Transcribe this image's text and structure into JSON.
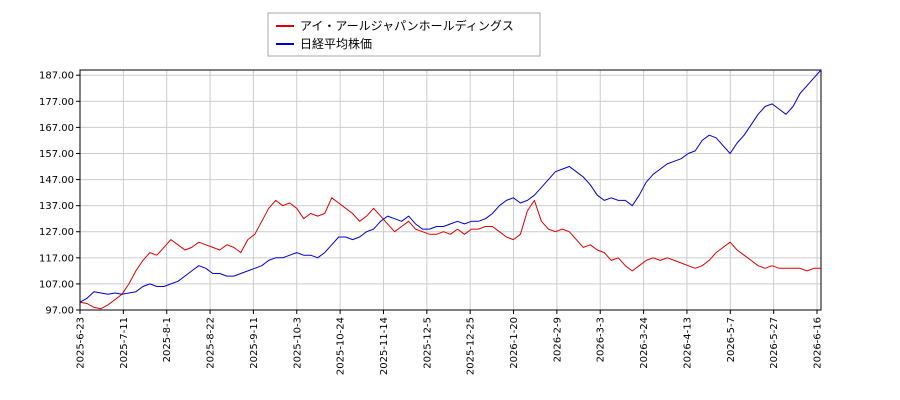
{
  "chart_data": {
    "type": "line",
    "title": "",
    "xlabel": "",
    "ylabel": "",
    "ylim": [
      97,
      189
    ],
    "yticks": [
      "97.00",
      "107.00",
      "117.00",
      "127.00",
      "137.00",
      "147.00",
      "157.00",
      "167.00",
      "177.00",
      "187.00"
    ],
    "xticks": [
      "2025-6-23",
      "2025-7-11",
      "2025-8-1",
      "2025-8-22",
      "2025-9-11",
      "2025-10-3",
      "2025-10-24",
      "2025-11-14",
      "2025-12-5",
      "2025-12-25",
      "2026-1-20",
      "2026-2-9",
      "2026-3-3",
      "2026-3-24",
      "2026-4-13",
      "2026-5-7",
      "2026-5-27",
      "2026-6-16"
    ],
    "grid": true,
    "legend_position": "top",
    "series": [
      {
        "name": "アイ・アールジャパンホールディングス",
        "color": "#dd0000",
        "points": [
          [
            0,
            100
          ],
          [
            1,
            99.5
          ],
          [
            2,
            98
          ],
          [
            3,
            97.5
          ],
          [
            4,
            99
          ],
          [
            5,
            101
          ],
          [
            6,
            103
          ],
          [
            7,
            107
          ],
          [
            8,
            112
          ],
          [
            9,
            116
          ],
          [
            10,
            119
          ],
          [
            11,
            118
          ],
          [
            12,
            121
          ],
          [
            13,
            124
          ],
          [
            14,
            122
          ],
          [
            15,
            120
          ],
          [
            16,
            121
          ],
          [
            17,
            123
          ],
          [
            18,
            122
          ],
          [
            19,
            121
          ],
          [
            20,
            120
          ],
          [
            21,
            122
          ],
          [
            22,
            121
          ],
          [
            23,
            119
          ],
          [
            24,
            124
          ],
          [
            25,
            126
          ],
          [
            26,
            131
          ],
          [
            27,
            136
          ],
          [
            28,
            139
          ],
          [
            29,
            137
          ],
          [
            30,
            138
          ],
          [
            31,
            136
          ],
          [
            32,
            132
          ],
          [
            33,
            134
          ],
          [
            34,
            133
          ],
          [
            35,
            134
          ],
          [
            36,
            140
          ],
          [
            37,
            138
          ],
          [
            38,
            136
          ],
          [
            39,
            134
          ],
          [
            40,
            131
          ],
          [
            41,
            133
          ],
          [
            42,
            136
          ],
          [
            43,
            133
          ],
          [
            44,
            130
          ],
          [
            45,
            127
          ],
          [
            46,
            129
          ],
          [
            47,
            131
          ],
          [
            48,
            128
          ],
          [
            49,
            127
          ],
          [
            50,
            126
          ],
          [
            51,
            126
          ],
          [
            52,
            127
          ],
          [
            53,
            126
          ],
          [
            54,
            128
          ],
          [
            55,
            126
          ],
          [
            56,
            128
          ],
          [
            57,
            128
          ],
          [
            58,
            129
          ],
          [
            59,
            129
          ],
          [
            60,
            127
          ],
          [
            61,
            125
          ],
          [
            62,
            124
          ],
          [
            63,
            126
          ],
          [
            64,
            135
          ],
          [
            65,
            139
          ],
          [
            66,
            131
          ],
          [
            67,
            128
          ],
          [
            68,
            127
          ],
          [
            69,
            128
          ],
          [
            70,
            127
          ],
          [
            71,
            124
          ],
          [
            72,
            121
          ],
          [
            73,
            122
          ],
          [
            74,
            120
          ],
          [
            75,
            119
          ],
          [
            76,
            116
          ],
          [
            77,
            117
          ],
          [
            78,
            114
          ],
          [
            79,
            112
          ],
          [
            80,
            114
          ],
          [
            81,
            116
          ],
          [
            82,
            117
          ],
          [
            83,
            116
          ],
          [
            84,
            117
          ],
          [
            85,
            116
          ],
          [
            86,
            115
          ],
          [
            87,
            114
          ],
          [
            88,
            113
          ],
          [
            89,
            114
          ],
          [
            90,
            116
          ],
          [
            91,
            119
          ],
          [
            92,
            121
          ],
          [
            93,
            123
          ],
          [
            94,
            120
          ],
          [
            95,
            118
          ],
          [
            96,
            116
          ],
          [
            97,
            114
          ],
          [
            98,
            113
          ],
          [
            99,
            114
          ],
          [
            100,
            113
          ],
          [
            101,
            113
          ],
          [
            102,
            113
          ],
          [
            103,
            113
          ],
          [
            104,
            112
          ],
          [
            105,
            113
          ],
          [
            106,
            113
          ]
        ]
      },
      {
        "name": "日経平均株価",
        "color": "#0000cc",
        "points": [
          [
            0,
            100
          ],
          [
            1,
            101.5
          ],
          [
            2,
            104
          ],
          [
            3,
            103.5
          ],
          [
            4,
            103
          ],
          [
            5,
            103.5
          ],
          [
            6,
            103
          ],
          [
            7,
            103.5
          ],
          [
            8,
            104
          ],
          [
            9,
            106
          ],
          [
            10,
            107
          ],
          [
            11,
            106
          ],
          [
            12,
            106
          ],
          [
            13,
            107
          ],
          [
            14,
            108
          ],
          [
            15,
            110
          ],
          [
            16,
            112
          ],
          [
            17,
            114
          ],
          [
            18,
            113
          ],
          [
            19,
            111
          ],
          [
            20,
            111
          ],
          [
            21,
            110
          ],
          [
            22,
            110
          ],
          [
            23,
            111
          ],
          [
            24,
            112
          ],
          [
            25,
            113
          ],
          [
            26,
            114
          ],
          [
            27,
            116
          ],
          [
            28,
            117
          ],
          [
            29,
            117
          ],
          [
            30,
            118
          ],
          [
            31,
            119
          ],
          [
            32,
            118
          ],
          [
            33,
            118
          ],
          [
            34,
            117
          ],
          [
            35,
            119
          ],
          [
            36,
            122
          ],
          [
            37,
            125
          ],
          [
            38,
            125
          ],
          [
            39,
            124
          ],
          [
            40,
            125
          ],
          [
            41,
            127
          ],
          [
            42,
            128
          ],
          [
            43,
            131
          ],
          [
            44,
            133
          ],
          [
            45,
            132
          ],
          [
            46,
            131
          ],
          [
            47,
            133
          ],
          [
            48,
            130
          ],
          [
            49,
            128
          ],
          [
            50,
            128
          ],
          [
            51,
            129
          ],
          [
            52,
            129
          ],
          [
            53,
            130
          ],
          [
            54,
            131
          ],
          [
            55,
            130
          ],
          [
            56,
            131
          ],
          [
            57,
            131
          ],
          [
            58,
            132
          ],
          [
            59,
            134
          ],
          [
            60,
            137
          ],
          [
            61,
            139
          ],
          [
            62,
            140
          ],
          [
            63,
            138
          ],
          [
            64,
            139
          ],
          [
            65,
            141
          ],
          [
            66,
            144
          ],
          [
            67,
            147
          ],
          [
            68,
            150
          ],
          [
            69,
            151
          ],
          [
            70,
            152
          ],
          [
            71,
            150
          ],
          [
            72,
            148
          ],
          [
            73,
            145
          ],
          [
            74,
            141
          ],
          [
            75,
            139
          ],
          [
            76,
            140
          ],
          [
            77,
            139
          ],
          [
            78,
            139
          ],
          [
            79,
            137
          ],
          [
            80,
            141
          ],
          [
            81,
            146
          ],
          [
            82,
            149
          ],
          [
            83,
            151
          ],
          [
            84,
            153
          ],
          [
            85,
            154
          ],
          [
            86,
            155
          ],
          [
            87,
            157
          ],
          [
            88,
            158
          ],
          [
            89,
            162
          ],
          [
            90,
            164
          ],
          [
            91,
            163
          ],
          [
            92,
            160
          ],
          [
            93,
            157
          ],
          [
            94,
            161
          ],
          [
            95,
            164
          ],
          [
            96,
            168
          ],
          [
            97,
            172
          ],
          [
            98,
            175
          ],
          [
            99,
            176
          ],
          [
            100,
            174
          ],
          [
            101,
            172
          ],
          [
            102,
            175
          ],
          [
            103,
            180
          ],
          [
            104,
            183
          ],
          [
            105,
            186
          ],
          [
            106,
            189
          ]
        ]
      }
    ]
  }
}
